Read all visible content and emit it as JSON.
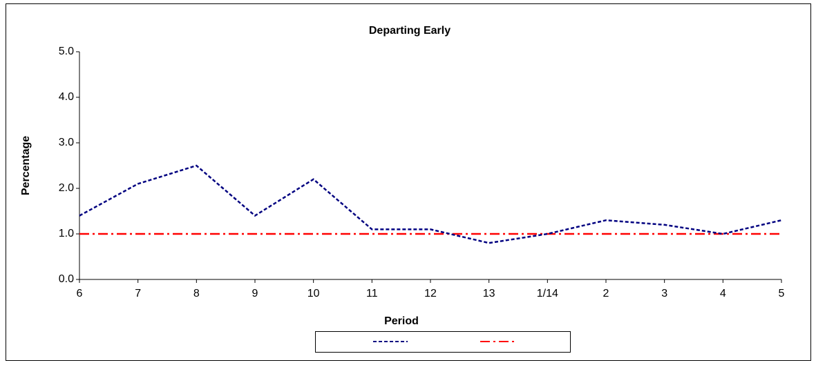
{
  "chart_data": {
    "type": "line",
    "title": "Departing Early",
    "x_label": "Period",
    "y_label": "Percentage",
    "categories": [
      "6",
      "7",
      "8",
      "9",
      "10",
      "11",
      "12",
      "13",
      "1/14",
      "2",
      "3",
      "4",
      "5"
    ],
    "series": [
      {
        "color": "#000080",
        "style": "dashed",
        "values": [
          1.4,
          2.1,
          2.5,
          1.4,
          2.2,
          1.1,
          1.1,
          0.8,
          1.0,
          1.3,
          1.2,
          1.0,
          1.3
        ]
      },
      {
        "color": "#ff0000",
        "style": "dash-dot",
        "values": [
          1.0,
          1.0,
          1.0,
          1.0,
          1.0,
          1.0,
          1.0,
          1.0,
          1.0,
          1.0,
          1.0,
          1.0,
          1.0
        ]
      }
    ],
    "ylim": [
      0,
      5
    ],
    "yticks": [
      {
        "value": 0,
        "label": "0.0"
      },
      {
        "value": 1,
        "label": "1.0"
      },
      {
        "value": 2,
        "label": "2.0"
      },
      {
        "value": 3,
        "label": "3.0"
      },
      {
        "value": 4,
        "label": "4.0"
      },
      {
        "value": 5,
        "label": "5.0"
      }
    ],
    "grid": false,
    "legend": "bottom"
  }
}
